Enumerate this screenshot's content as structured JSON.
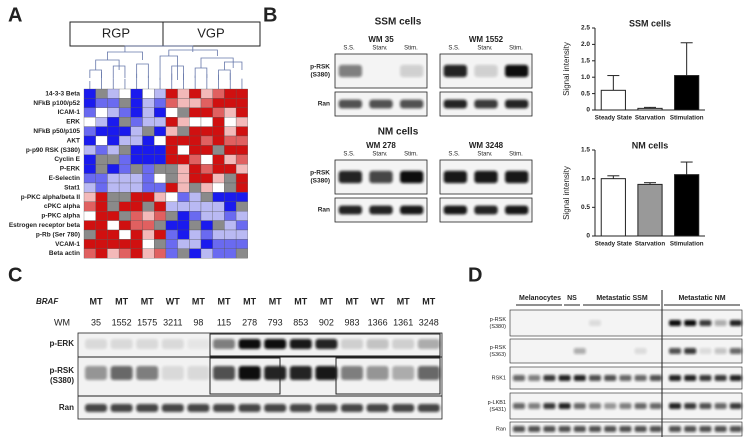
{
  "panels": [
    "A",
    "B",
    "C",
    "D"
  ],
  "panel_a": {
    "groups": [
      "RGP",
      "VGP"
    ],
    "rows": [
      "14-3-3 Beta",
      "NFkB p100/p52",
      "ICAM-1",
      "ERK",
      "NFkB p50/p105",
      "AKT",
      "p-p90 RSK (S380)",
      "Cyclin E",
      "P-ERK",
      "E-Selectin",
      "Stat1",
      "p-PKC alpha/beta II",
      "cPKC alpha",
      "p-PKC alpha",
      "Estrogen receptor beta",
      "p-Rb (Ser 780)",
      "VCAM-1",
      "Beta actin"
    ]
  },
  "panel_b": {
    "sections": [
      "SSM cells",
      "NM cells"
    ],
    "cell_lines": [
      "WM 35",
      "WM 1552",
      "WM 278",
      "WM 3248"
    ],
    "lanes": [
      "S.S.",
      "Starv.",
      "Stim."
    ],
    "blot_labels": [
      [
        "p-RSK",
        "(S380)"
      ],
      [
        "Ran"
      ]
    ]
  },
  "chart_data": [
    {
      "type": "bar",
      "title": "SSM cells",
      "y_label": "Signal intensity",
      "categories": [
        "Steady State",
        "Starvation",
        "Stimulation"
      ],
      "values": [
        0.6,
        0.05,
        1.05
      ],
      "errors": [
        0.45,
        0.03,
        1.0
      ],
      "colors": [
        "#ffffff",
        "#ffffff",
        "#000000"
      ],
      "ylim": [
        0,
        2.5
      ],
      "yticks": [
        0,
        0.5,
        {
          "value": 1,
          "label": "1.0"
        },
        1.5,
        {
          "value": 2,
          "label": "2.0"
        },
        2.5
      ]
    },
    {
      "type": "bar",
      "title": "NM cells",
      "y_label": "Signal intensity",
      "categories": [
        "Steady State",
        "Starvation",
        "Stimulation"
      ],
      "values": [
        1.0,
        0.9,
        1.07
      ],
      "errors": [
        0.05,
        0.03,
        0.22
      ],
      "colors": [
        "#ffffff",
        "#999999",
        "#000000"
      ],
      "ylim": [
        0,
        1.5
      ],
      "yticks": [
        0,
        0.5,
        {
          "value": 1,
          "label": "1.0"
        },
        1.5
      ]
    }
  ],
  "panel_c": {
    "braf_label": "BRAF",
    "status": [
      "MT",
      "MT",
      "MT",
      "WT",
      "MT",
      "MT",
      "MT",
      "MT",
      "MT",
      "MT",
      "MT",
      "WT",
      "MT",
      "MT"
    ],
    "status_colors": {
      "MT": "#222222",
      "WT": "#3aa040"
    },
    "wm_label": "WM",
    "cell_lines": [
      "35",
      "1552",
      "1575",
      "3211",
      "98",
      "115",
      "278",
      "793",
      "853",
      "902",
      "983",
      "1366",
      "1361",
      "3248"
    ],
    "blot_labels": [
      [
        "p-ERK"
      ],
      [
        "p-RSK",
        "(S380)"
      ],
      [
        "Ran"
      ]
    ]
  },
  "panel_d": {
    "groups": [
      "Melanocytes",
      "NS",
      "Metastatic SSM",
      "Metastatic NM"
    ],
    "blot_labels": [
      [
        "p-RSK",
        "(S380)"
      ],
      [
        "p-RSK",
        "(S363)"
      ],
      [
        "RSK1"
      ],
      [
        "p-LKB1",
        "(S431)"
      ],
      [
        "Ran"
      ]
    ]
  }
}
